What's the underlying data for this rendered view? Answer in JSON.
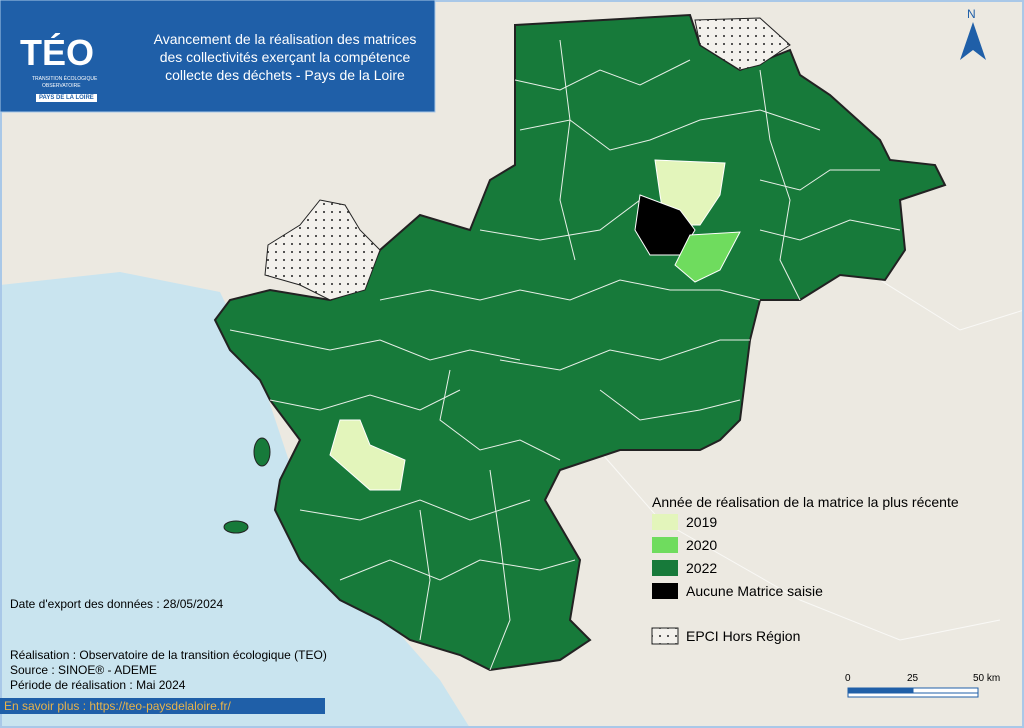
{
  "header": {
    "logo": "TÉO",
    "logo_sub1": "TRANSITION ÉCOLOGIQUE",
    "logo_sub2": "OBSERVATOIRE",
    "logo_badge": "PAYS DE LA LOIRE",
    "title_lines": [
      "Avancement de la réalisation des matrices",
      "des collectivités exerçant la compétence",
      "collecte des déchets - Pays de la Loire"
    ]
  },
  "north": "N",
  "legend": {
    "title": "Année de réalisation de la matrice la plus récente",
    "items": [
      {
        "label": "2019",
        "color": "#e3f5bb"
      },
      {
        "label": "2020",
        "color": "#6fdc5e"
      },
      {
        "label": "2022",
        "color": "#177a3a"
      },
      {
        "label": "Aucune Matrice saisie",
        "color": "#000000"
      }
    ],
    "outside": "EPCI Hors Région"
  },
  "scale": {
    "labels": [
      "0",
      "25",
      "50 km"
    ]
  },
  "footer": {
    "export_date": "Date d'export des données : 28/05/2024",
    "credits": [
      "Réalisation : Observatoire de la transition écologique (TEO)",
      "Source : SINOE® - ADEME",
      "Période de réalisation : Mai 2024"
    ],
    "link": "En savoir plus : https://teo-paysdelaloire.fr/"
  }
}
